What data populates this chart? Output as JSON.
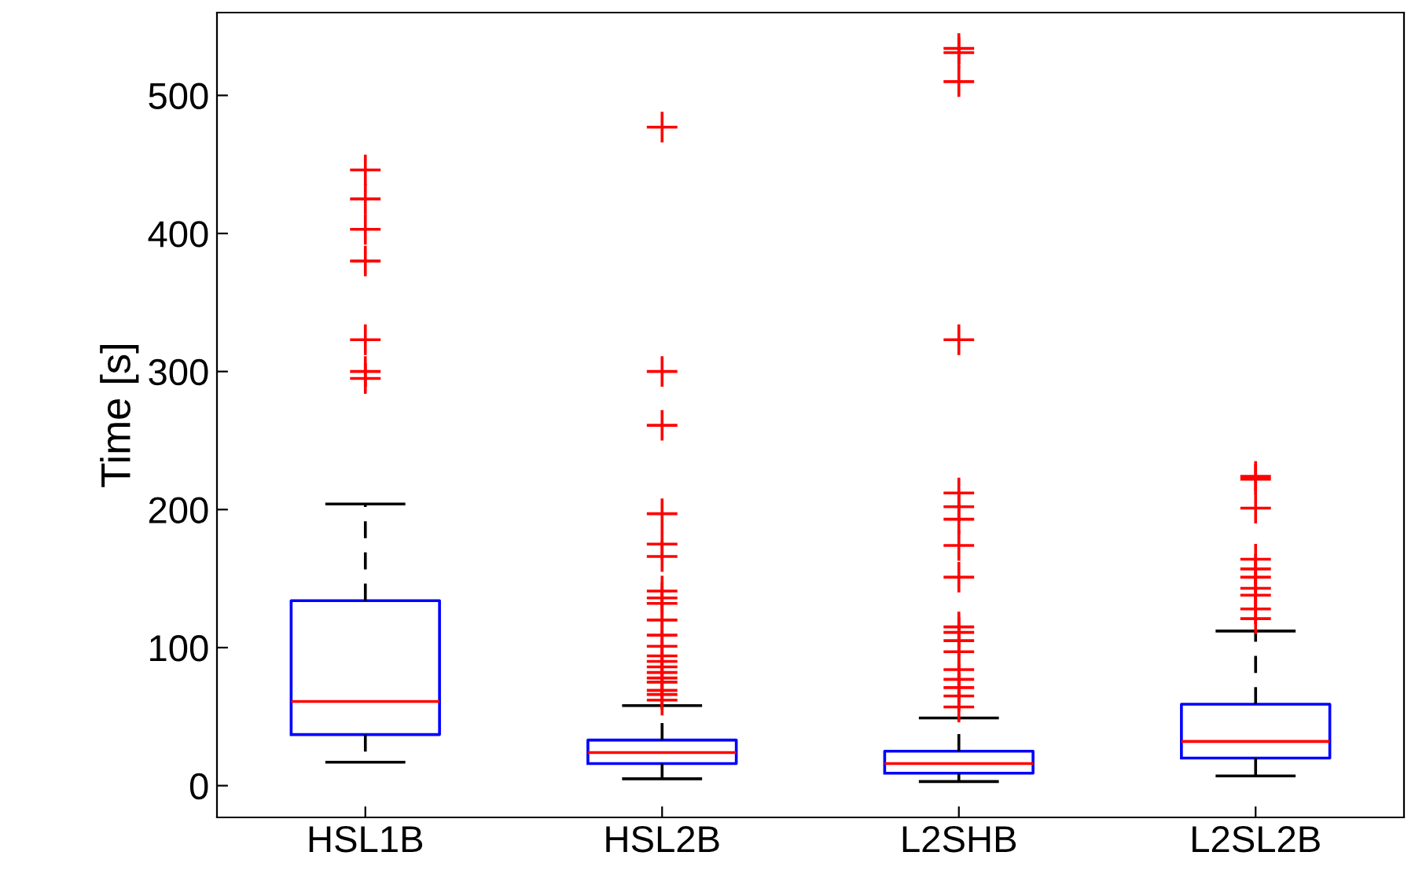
{
  "chart_data": {
    "type": "box",
    "ylabel": "Time [s]",
    "categories": [
      "HSL1B",
      "HSL2B",
      "L2SHB",
      "L2SL2B"
    ],
    "ylim": [
      -23,
      560
    ],
    "yticks": [
      0,
      100,
      200,
      300,
      400,
      500
    ],
    "grid": false,
    "boxes": [
      {
        "low": 17,
        "q1": 37,
        "median": 61,
        "q3": 134,
        "high": 204,
        "outliers": [
          446,
          425,
          403,
          380,
          323,
          300,
          295
        ]
      },
      {
        "low": 5,
        "q1": 16,
        "median": 24,
        "q3": 33,
        "high": 58,
        "outliers": [
          477,
          300,
          261,
          197,
          175,
          166,
          141,
          136,
          132,
          120,
          109,
          101,
          94,
          90,
          86,
          82,
          78,
          75,
          69,
          66,
          62
        ]
      },
      {
        "low": 3,
        "q1": 9,
        "median": 16,
        "q3": 25,
        "high": 49,
        "outliers": [
          534,
          531,
          510,
          323,
          212,
          202,
          193,
          174,
          151,
          115,
          111,
          105,
          97,
          84,
          77,
          71,
          65,
          57
        ]
      },
      {
        "low": 7,
        "q1": 20,
        "median": 32,
        "q3": 59,
        "high": 112,
        "outliers": [
          224,
          222,
          201,
          164,
          157,
          151,
          143,
          138,
          128,
          121
        ]
      }
    ]
  }
}
